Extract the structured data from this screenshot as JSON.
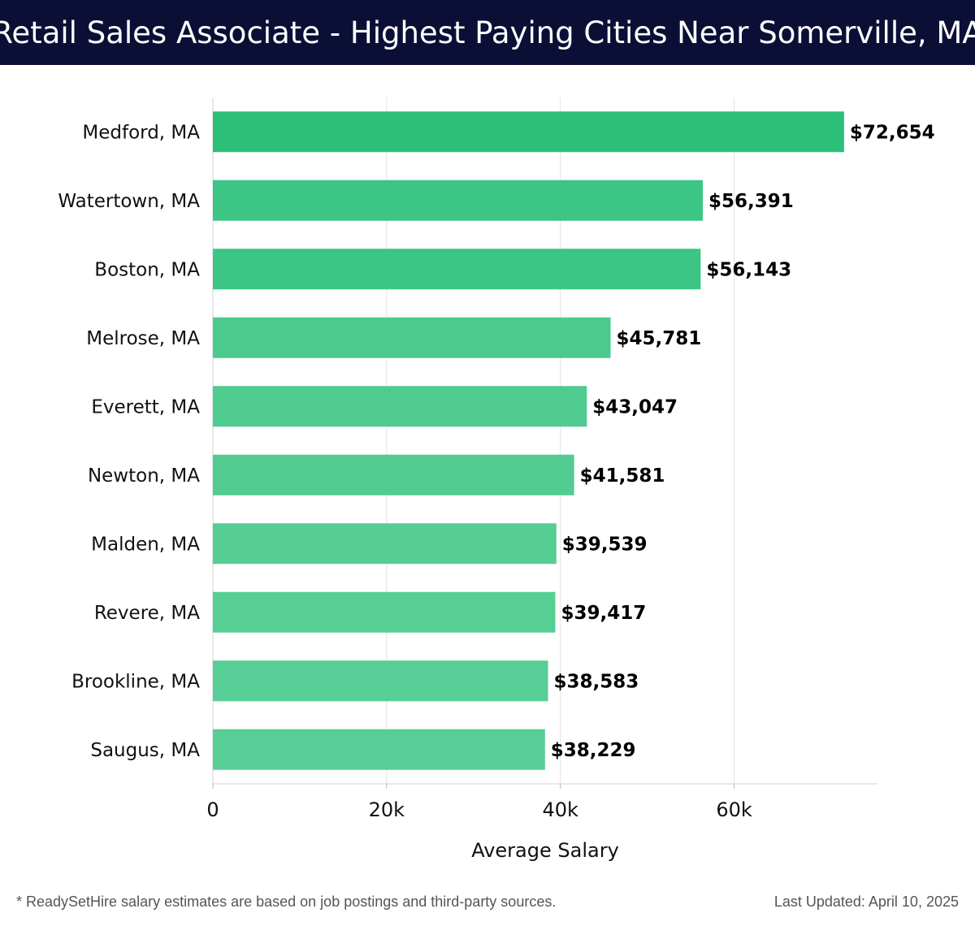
{
  "header": {
    "title": "Retail Sales Associate - Highest Paying Cities Near Somerville, MA"
  },
  "chart_data": {
    "type": "bar",
    "orientation": "horizontal",
    "title": "Retail Sales Associate - Highest Paying Cities Near Somerville, MA",
    "xlabel": "Average Salary",
    "ylabel": "",
    "xlim": [
      0,
      76500
    ],
    "xticks": [
      0,
      20000,
      40000,
      60000
    ],
    "xtick_labels": [
      "0",
      "20k",
      "40k",
      "60k"
    ],
    "grid": true,
    "categories": [
      "Medford, MA",
      "Watertown, MA",
      "Boston, MA",
      "Melrose, MA",
      "Everett, MA",
      "Newton, MA",
      "Malden, MA",
      "Revere, MA",
      "Brookline, MA",
      "Saugus, MA"
    ],
    "values": [
      72654,
      56391,
      56143,
      45781,
      43047,
      41581,
      39539,
      39417,
      38583,
      38229
    ],
    "value_labels": [
      "$72,654",
      "$56,391",
      "$56,143",
      "$45,781",
      "$43,047",
      "$41,581",
      "$39,539",
      "$39,417",
      "$38,583",
      "$38,229"
    ],
    "colors": [
      "#2bbf78",
      "#3cc584",
      "#3cc584",
      "#4cca8d",
      "#4fcb8f",
      "#52cc91",
      "#55cd93",
      "#56ce94",
      "#57ce95",
      "#57ce95"
    ]
  },
  "footer": {
    "note": "* ReadySetHire salary estimates are based on job postings and third-party sources.",
    "updated": "Last Updated: April 10, 2025"
  }
}
